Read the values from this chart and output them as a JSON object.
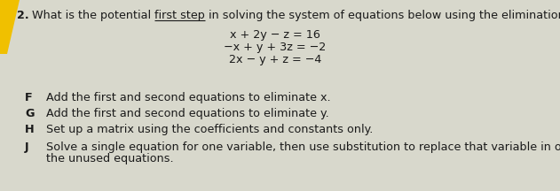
{
  "background_color": "#d8d8cc",
  "question_number": "2.",
  "question_text_part1": "What is the potential ",
  "question_text_underlined": "first step",
  "question_text_part3": " in solving the system of equations below using the elimination method?",
  "equations": [
    "x + 2y − z = 16",
    "−x + y + 3z = −2",
    "2x − y + z = −4"
  ],
  "options": [
    {
      "letter": "F",
      "text": "Add the first and second equations to eliminate x."
    },
    {
      "letter": "G",
      "text": "Add the first and second equations to eliminate y."
    },
    {
      "letter": "H",
      "text": "Set up a matrix using the coefficients and constants only."
    },
    {
      "letter": "J",
      "text": "Solve a single equation for one variable, then use substitution to replace that variable in one of",
      "text2": "the unused equations."
    }
  ],
  "yellow_bar_color": "#f0c000",
  "text_color": "#1a1a1a",
  "font_size_question": 9.2,
  "font_size_equations": 9.2,
  "font_size_options": 9.2,
  "fig_width": 6.31,
  "fig_height": 2.16,
  "dpi": 100
}
